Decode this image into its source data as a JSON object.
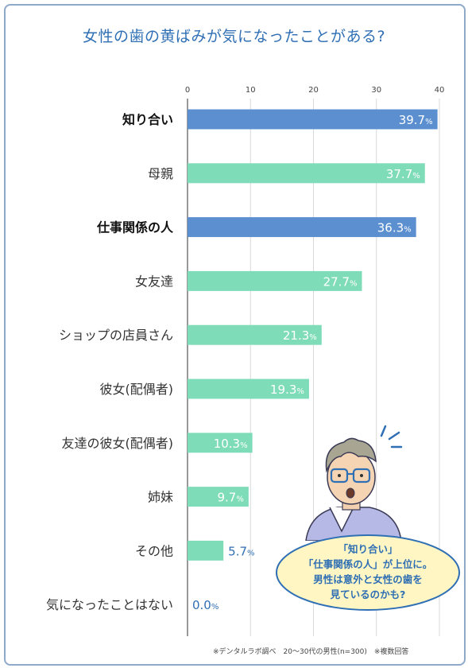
{
  "title": "女性の歯の黄ばみが気になったことがある?",
  "chart_data": {
    "type": "bar",
    "orientation": "horizontal",
    "xlim": [
      0,
      40
    ],
    "xticks": [
      "0",
      "10",
      "20",
      "30",
      "40"
    ],
    "categories": [
      "知り合い",
      "母親",
      "仕事関係の人",
      "女友達",
      "ショップの店員さん",
      "彼女(配偶者)",
      "友達の彼女(配偶者)",
      "姉妹",
      "その他",
      "気になったことはない"
    ],
    "values": [
      39.7,
      37.7,
      36.3,
      27.7,
      21.3,
      19.3,
      10.3,
      9.7,
      5.7,
      0.0
    ],
    "value_labels": [
      "39.7",
      "37.7",
      "36.3",
      "27.7",
      "21.3",
      "19.3",
      "10.3",
      "9.7",
      "5.7",
      "0.0"
    ],
    "unit": "%",
    "highlighted": [
      true,
      false,
      true,
      false,
      false,
      false,
      false,
      false,
      false,
      false
    ],
    "colors": {
      "highlight": "#5b8fd0",
      "normal": "#7fdcb8",
      "label_highlight": "#111111",
      "label_normal": "#333333",
      "value_outside": "#2f6fb4"
    },
    "grid": true
  },
  "bubble": {
    "line1": "「知り合い」",
    "line2": "「仕事関係の人」が上位に。",
    "line3": "男性は意外と女性の歯を",
    "line4": "見ているのかも?"
  },
  "footnote": "※デンタルラボ調べ　20〜30代の男性(n=300)　※複数回答"
}
